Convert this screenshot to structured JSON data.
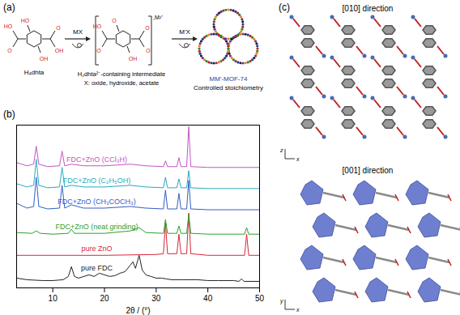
{
  "chart_data": {
    "type": "line",
    "title": "(b)",
    "x_label": "2θ / (°)",
    "xlim": [
      3,
      50
    ],
    "xticks": [
      10,
      20,
      30,
      40,
      50
    ],
    "ylim": [
      0,
      100
    ],
    "tick_labels": "x",
    "series": [
      {
        "name": "pure FDC",
        "color": "#222222",
        "x": [
          3,
          5,
          8,
          10,
          12,
          13,
          13.6,
          14.2,
          15,
          17,
          18,
          19,
          20,
          21,
          22,
          23,
          24,
          25,
          25.5,
          26,
          26.7,
          27.3,
          28,
          29,
          30,
          31,
          32,
          33,
          35,
          38,
          40,
          42,
          45,
          46,
          46.5,
          47,
          50
        ],
        "values": [
          6,
          5,
          4.5,
          4.5,
          5,
          7,
          13,
          7,
          6,
          8,
          7,
          9,
          8,
          7,
          7.5,
          9,
          10,
          14,
          16,
          12,
          20,
          11,
          8,
          7,
          6,
          6,
          5.5,
          5,
          5,
          5,
          4.5,
          4.5,
          4.5,
          4,
          5.5,
          4,
          4
        ]
      },
      {
        "name": "pure ZnO",
        "color": "#d6273a",
        "x": [
          3,
          10,
          20,
          30,
          31.4,
          31.8,
          32.2,
          34.0,
          34.4,
          34.8,
          35.9,
          36.3,
          36.7,
          40,
          47.1,
          47.5,
          47.9,
          50
        ],
        "values": [
          20,
          20,
          20,
          20.5,
          21,
          40,
          21,
          21,
          33,
          21,
          21,
          46,
          21,
          20,
          20,
          33,
          20,
          20
        ]
      },
      {
        "name": "FDC+ZnO (neat grinding)",
        "color": "#2ca02c",
        "x": [
          3,
          6,
          6.8,
          7.6,
          10,
          13,
          13.6,
          14.2,
          20,
          25,
          26.7,
          28,
          31.4,
          31.8,
          32.2,
          34.0,
          34.4,
          34.8,
          35.9,
          36.3,
          36.7,
          40,
          47.1,
          47.5,
          47.9,
          50
        ],
        "values": [
          34,
          33.5,
          35,
          33.5,
          33,
          33.5,
          36,
          33.5,
          33.5,
          35,
          37,
          34,
          33.5,
          42,
          33.5,
          33.5,
          38,
          33.5,
          33.5,
          45,
          33.5,
          33,
          33,
          37,
          33,
          33
        ]
      },
      {
        "name": "FDC+ZnO (CH₃COCH₃)",
        "color": "#2f5fc4",
        "x": [
          3,
          5,
          6.3,
          6.8,
          7.3,
          9,
          11.3,
          11.8,
          12.3,
          13.6,
          16,
          20,
          25,
          28,
          31.4,
          31.8,
          32.2,
          34.0,
          34.4,
          34.8,
          35.9,
          36.3,
          36.7,
          40,
          45,
          50
        ],
        "values": [
          52,
          49,
          50,
          68,
          50,
          48.5,
          49,
          63,
          49,
          51,
          49,
          49,
          50,
          49,
          48.5,
          60,
          48.5,
          48.5,
          58,
          48.5,
          48.5,
          66,
          48.5,
          48,
          48,
          48
        ]
      },
      {
        "name": "FDC+ZnO (C₂H₅OH)",
        "color": "#2aa9bd",
        "x": [
          3,
          5,
          6.3,
          6.8,
          7.3,
          9,
          11.3,
          11.8,
          12.3,
          13.6,
          16,
          20,
          25,
          28,
          31.4,
          31.8,
          32.2,
          34.0,
          34.4,
          34.8,
          35.9,
          36.3,
          36.7,
          40,
          45,
          50
        ],
        "values": [
          64,
          62,
          63,
          79,
          63,
          61.5,
          62,
          74,
          62,
          63,
          62,
          62,
          63,
          62,
          61.5,
          68,
          61.5,
          61.5,
          67,
          61.5,
          61.5,
          72,
          61.5,
          61,
          61,
          61
        ]
      },
      {
        "name": "FDC+ZnO (CCl₃H)",
        "color": "#c355c3",
        "x": [
          3,
          5,
          6.3,
          6.8,
          7.3,
          9,
          11.3,
          11.8,
          12.3,
          13.6,
          16,
          20,
          25,
          28,
          31.4,
          31.8,
          32.2,
          34.0,
          34.4,
          34.8,
          35.9,
          36.3,
          36.7,
          40,
          45,
          50
        ],
        "values": [
          77,
          75,
          76,
          87,
          76,
          74.5,
          75,
          84,
          75,
          76,
          75,
          75,
          76,
          75,
          74.5,
          78,
          74.5,
          74.5,
          80,
          74.5,
          74.5,
          99,
          74.5,
          74,
          74,
          74
        ]
      }
    ]
  },
  "scheme": {
    "label": "(a)",
    "reactant": "H₄dhta",
    "reactant_atoms": [
      "HO",
      "O",
      "OH",
      "O",
      "HO",
      "OH"
    ],
    "step1_reagent": "MX",
    "intermediate": "H₂dhta²⁻-containing intermediate",
    "intermediate_atoms": [
      "HO",
      "O",
      "O",
      "O",
      "O",
      "OH"
    ],
    "note": "X: oxide, hydroxide, acetate",
    "metal": ",M²⁺",
    "step2_reagent": "M'X",
    "product": "MM'-MOF-74",
    "product_note": "Controlled stoichiometry"
  },
  "structure": {
    "label": "(c)",
    "views": [
      "[010] direction",
      "[001] direction"
    ],
    "axis_labels": [
      [
        "z",
        "x"
      ],
      [
        "y",
        "x"
      ]
    ]
  }
}
